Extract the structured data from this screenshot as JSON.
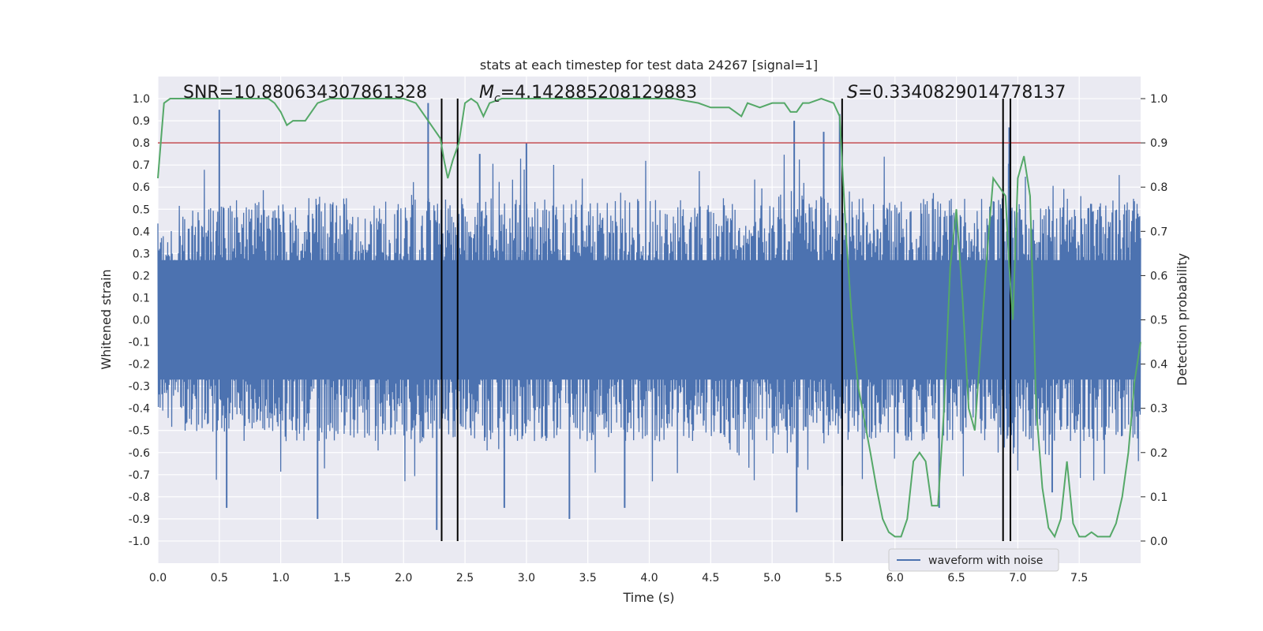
{
  "chart_data": {
    "type": "line",
    "title": "stats at each timestep for test data 24267 [signal=1]",
    "xlabel": "Time (s)",
    "ylabel": "Whitened strain",
    "y2label": "Detection probability",
    "xlim": [
      0.0,
      8.0
    ],
    "ylim": [
      -1.1,
      1.1
    ],
    "y2lim": [
      -0.05,
      1.05
    ],
    "x_ticks": [
      "0.0",
      "0.5",
      "1.0",
      "1.5",
      "2.0",
      "2.5",
      "3.0",
      "3.5",
      "4.0",
      "4.5",
      "5.0",
      "5.5",
      "6.0",
      "6.5",
      "7.0",
      "7.5"
    ],
    "y_ticks": [
      "1.0",
      "0.9",
      "0.8",
      "0.7",
      "0.6",
      "0.5",
      "0.4",
      "0.3",
      "0.2",
      "0.1",
      "0.0",
      "-0.1",
      "-0.2",
      "-0.3",
      "-0.4",
      "-0.5",
      "-0.6",
      "-0.7",
      "-0.8",
      "-0.9",
      "-1.0"
    ],
    "y2_ticks": [
      "1.0",
      "0.9",
      "0.8",
      "0.7",
      "0.6",
      "0.5",
      "0.4",
      "0.3",
      "0.2",
      "0.1",
      "0.0"
    ],
    "grid": true,
    "legend": {
      "placement": "lower-right",
      "entries": [
        "waveform with noise"
      ]
    },
    "annotations": {
      "snr": "SNR=10.880634307861328",
      "mc": "=4.142885208129883",
      "mc_symbol": "M",
      "mc_subscript": "c",
      "s": "=0.3340829014778137",
      "s_symbol": "S"
    },
    "threshold": {
      "axis": "y2",
      "value": 0.9,
      "color": "#c44e52"
    },
    "vertical_lines": [
      2.31,
      2.44,
      5.57,
      6.88,
      6.94
    ],
    "vertical_lines_ylim": [
      -1.0,
      1.0
    ],
    "series": [
      {
        "name": "waveform with noise",
        "axis": "y",
        "color": "#4c72b0",
        "style": "dense-noise",
        "envelope": {
          "x": [
            0.0,
            0.5,
            1.0,
            1.5,
            2.0,
            2.2,
            2.3,
            2.45,
            3.0,
            3.5,
            4.0,
            4.5,
            5.0,
            5.2,
            5.5,
            6.0,
            6.5,
            7.0,
            7.5,
            8.0
          ],
          "upper": [
            0.45,
            0.55,
            0.55,
            0.55,
            0.55,
            0.6,
            0.55,
            0.55,
            0.55,
            0.55,
            0.55,
            0.55,
            0.55,
            0.6,
            0.55,
            0.55,
            0.55,
            0.55,
            0.55,
            0.55
          ],
          "lower": [
            -0.45,
            -0.55,
            -0.55,
            -0.55,
            -0.55,
            -0.6,
            -0.55,
            -0.55,
            -0.55,
            -0.55,
            -0.55,
            -0.55,
            -0.55,
            -0.6,
            -0.55,
            -0.55,
            -0.55,
            -0.55,
            -0.55,
            -0.55
          ]
        },
        "peaks": [
          {
            "x": 0.5,
            "y": 0.95
          },
          {
            "x": 0.56,
            "y": -0.85
          },
          {
            "x": 1.3,
            "y": -0.9
          },
          {
            "x": 2.2,
            "y": 0.98
          },
          {
            "x": 2.27,
            "y": -0.95
          },
          {
            "x": 2.62,
            "y": 0.75
          },
          {
            "x": 2.82,
            "y": -0.85
          },
          {
            "x": 3.0,
            "y": 0.8
          },
          {
            "x": 3.35,
            "y": -0.9
          },
          {
            "x": 3.8,
            "y": -0.85
          },
          {
            "x": 5.18,
            "y": 0.9
          },
          {
            "x": 5.2,
            "y": -0.87
          },
          {
            "x": 5.42,
            "y": 0.85
          },
          {
            "x": 5.55,
            "y": 0.93
          },
          {
            "x": 5.57,
            "y": -0.75
          },
          {
            "x": 6.36,
            "y": -0.85
          },
          {
            "x": 6.93,
            "y": 0.87
          },
          {
            "x": 7.28,
            "y": -0.78
          }
        ]
      },
      {
        "name": "",
        "axis": "y2",
        "color": "#55a868",
        "x": [
          0.0,
          0.05,
          0.1,
          0.2,
          0.3,
          0.4,
          0.5,
          0.6,
          0.7,
          0.8,
          0.9,
          0.95,
          1.0,
          1.05,
          1.1,
          1.2,
          1.3,
          1.4,
          1.5,
          1.6,
          1.7,
          1.8,
          1.9,
          2.0,
          2.1,
          2.15,
          2.2,
          2.25,
          2.3,
          2.33,
          2.36,
          2.4,
          2.45,
          2.5,
          2.55,
          2.6,
          2.65,
          2.7,
          2.8,
          2.9,
          3.0,
          3.2,
          3.4,
          3.6,
          3.8,
          4.0,
          4.2,
          4.4,
          4.5,
          4.6,
          4.65,
          4.7,
          4.75,
          4.8,
          4.9,
          5.0,
          5.1,
          5.15,
          5.2,
          5.25,
          5.3,
          5.4,
          5.5,
          5.55,
          5.6,
          5.65,
          5.7,
          5.8,
          5.85,
          5.9,
          5.95,
          6.0,
          6.05,
          6.1,
          6.15,
          6.2,
          6.25,
          6.3,
          6.35,
          6.4,
          6.45,
          6.5,
          6.55,
          6.6,
          6.65,
          6.7,
          6.75,
          6.8,
          6.85,
          6.9,
          6.93,
          6.96,
          7.0,
          7.05,
          7.1,
          7.15,
          7.2,
          7.25,
          7.3,
          7.35,
          7.4,
          7.45,
          7.5,
          7.55,
          7.6,
          7.65,
          7.7,
          7.75,
          7.8,
          7.85,
          7.9,
          7.95,
          8.0
        ],
        "y": [
          0.82,
          0.99,
          1.0,
          1.0,
          1.0,
          1.0,
          1.0,
          1.0,
          1.0,
          1.0,
          1.0,
          0.99,
          0.97,
          0.94,
          0.95,
          0.95,
          0.99,
          1.0,
          1.0,
          1.0,
          1.0,
          1.0,
          1.0,
          1.0,
          0.99,
          0.97,
          0.95,
          0.93,
          0.91,
          0.86,
          0.82,
          0.86,
          0.9,
          0.99,
          1.0,
          0.99,
          0.96,
          0.99,
          1.0,
          1.0,
          1.0,
          1.0,
          1.0,
          1.0,
          1.0,
          1.0,
          1.0,
          0.99,
          0.98,
          0.98,
          0.98,
          0.97,
          0.96,
          0.99,
          0.98,
          0.99,
          0.99,
          0.97,
          0.97,
          0.99,
          0.99,
          1.0,
          0.99,
          0.96,
          0.7,
          0.5,
          0.35,
          0.2,
          0.12,
          0.05,
          0.02,
          0.01,
          0.01,
          0.05,
          0.18,
          0.2,
          0.18,
          0.08,
          0.08,
          0.3,
          0.62,
          0.75,
          0.55,
          0.3,
          0.25,
          0.45,
          0.65,
          0.82,
          0.8,
          0.78,
          0.62,
          0.5,
          0.82,
          0.87,
          0.78,
          0.3,
          0.12,
          0.03,
          0.01,
          0.05,
          0.18,
          0.04,
          0.01,
          0.01,
          0.02,
          0.01,
          0.01,
          0.01,
          0.04,
          0.1,
          0.2,
          0.36,
          0.45
        ]
      }
    ]
  }
}
